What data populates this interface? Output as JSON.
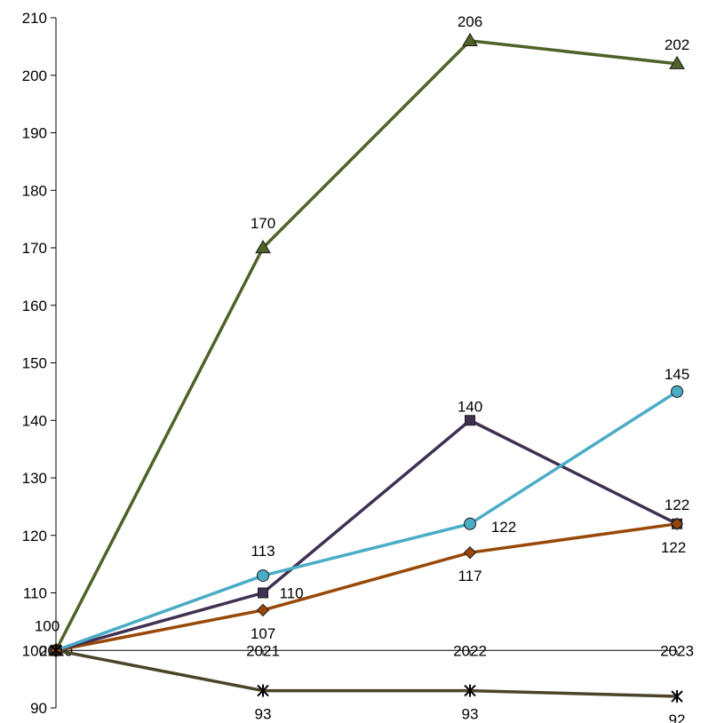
{
  "chart_data": {
    "type": "line",
    "title": "",
    "xlabel": "",
    "ylabel": "",
    "categories": [
      "2020",
      "2021",
      "2022",
      "2023"
    ],
    "ylim": [
      90,
      210
    ],
    "yticks": [
      "90",
      "100",
      "110",
      "120",
      "130",
      "140",
      "150",
      "160",
      "170",
      "180",
      "190",
      "200",
      "210"
    ],
    "grid": false,
    "legend": "none",
    "series": [
      {
        "color": "#4F6228",
        "marker": "triangle",
        "values": [
          100,
          170,
          206,
          202
        ],
        "labels": [
          "",
          "170",
          "206",
          "202"
        ]
      },
      {
        "color": "#4BACC6",
        "marker": "circle",
        "values": [
          100,
          113,
          122,
          145
        ],
        "labels": [
          "",
          "113",
          "122",
          "145"
        ]
      },
      {
        "color": "#403152",
        "marker": "square",
        "values": [
          100,
          110,
          140,
          122
        ],
        "labels": [
          "",
          "110",
          "140",
          "122"
        ]
      },
      {
        "color": "#984807",
        "marker": "diamond",
        "values": [
          100,
          107,
          117,
          122
        ],
        "labels": [
          "100",
          "107",
          "117",
          "122"
        ]
      },
      {
        "color": "#4A452A",
        "marker": "star",
        "values": [
          100,
          93,
          93,
          92
        ],
        "labels": [
          "",
          "93",
          "93",
          "92"
        ]
      }
    ]
  }
}
